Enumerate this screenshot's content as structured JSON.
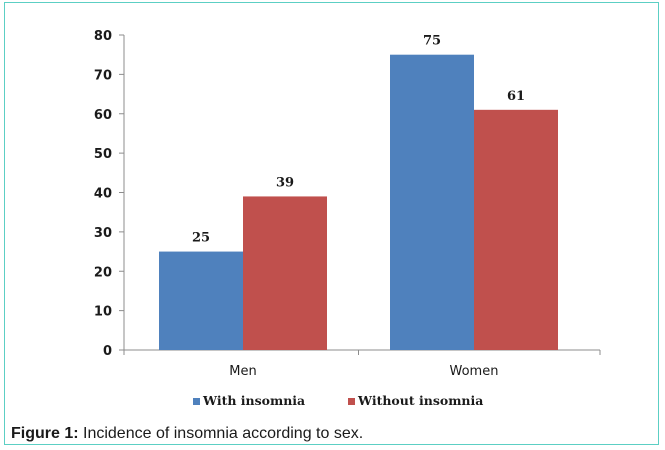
{
  "figure": {
    "caption_label": "Figure 1:",
    "caption_text": " Incidence of insomnia according to sex."
  },
  "colors": {
    "border": "#5ccfc4",
    "series": [
      "#4f81bd",
      "#c0504d"
    ]
  },
  "chart_data": {
    "type": "bar",
    "title": "",
    "xlabel": "",
    "ylabel": "",
    "categories": [
      "Men",
      "Women"
    ],
    "series": [
      {
        "name": "With insomnia",
        "values": [
          25,
          75
        ]
      },
      {
        "name": "Without insomnia",
        "values": [
          39,
          61
        ]
      }
    ],
    "ylim": [
      0,
      80
    ],
    "yticks": [
      0,
      10,
      20,
      30,
      40,
      50,
      60,
      70,
      80
    ],
    "grid": false,
    "legend": "bottom",
    "data_labels": true
  }
}
